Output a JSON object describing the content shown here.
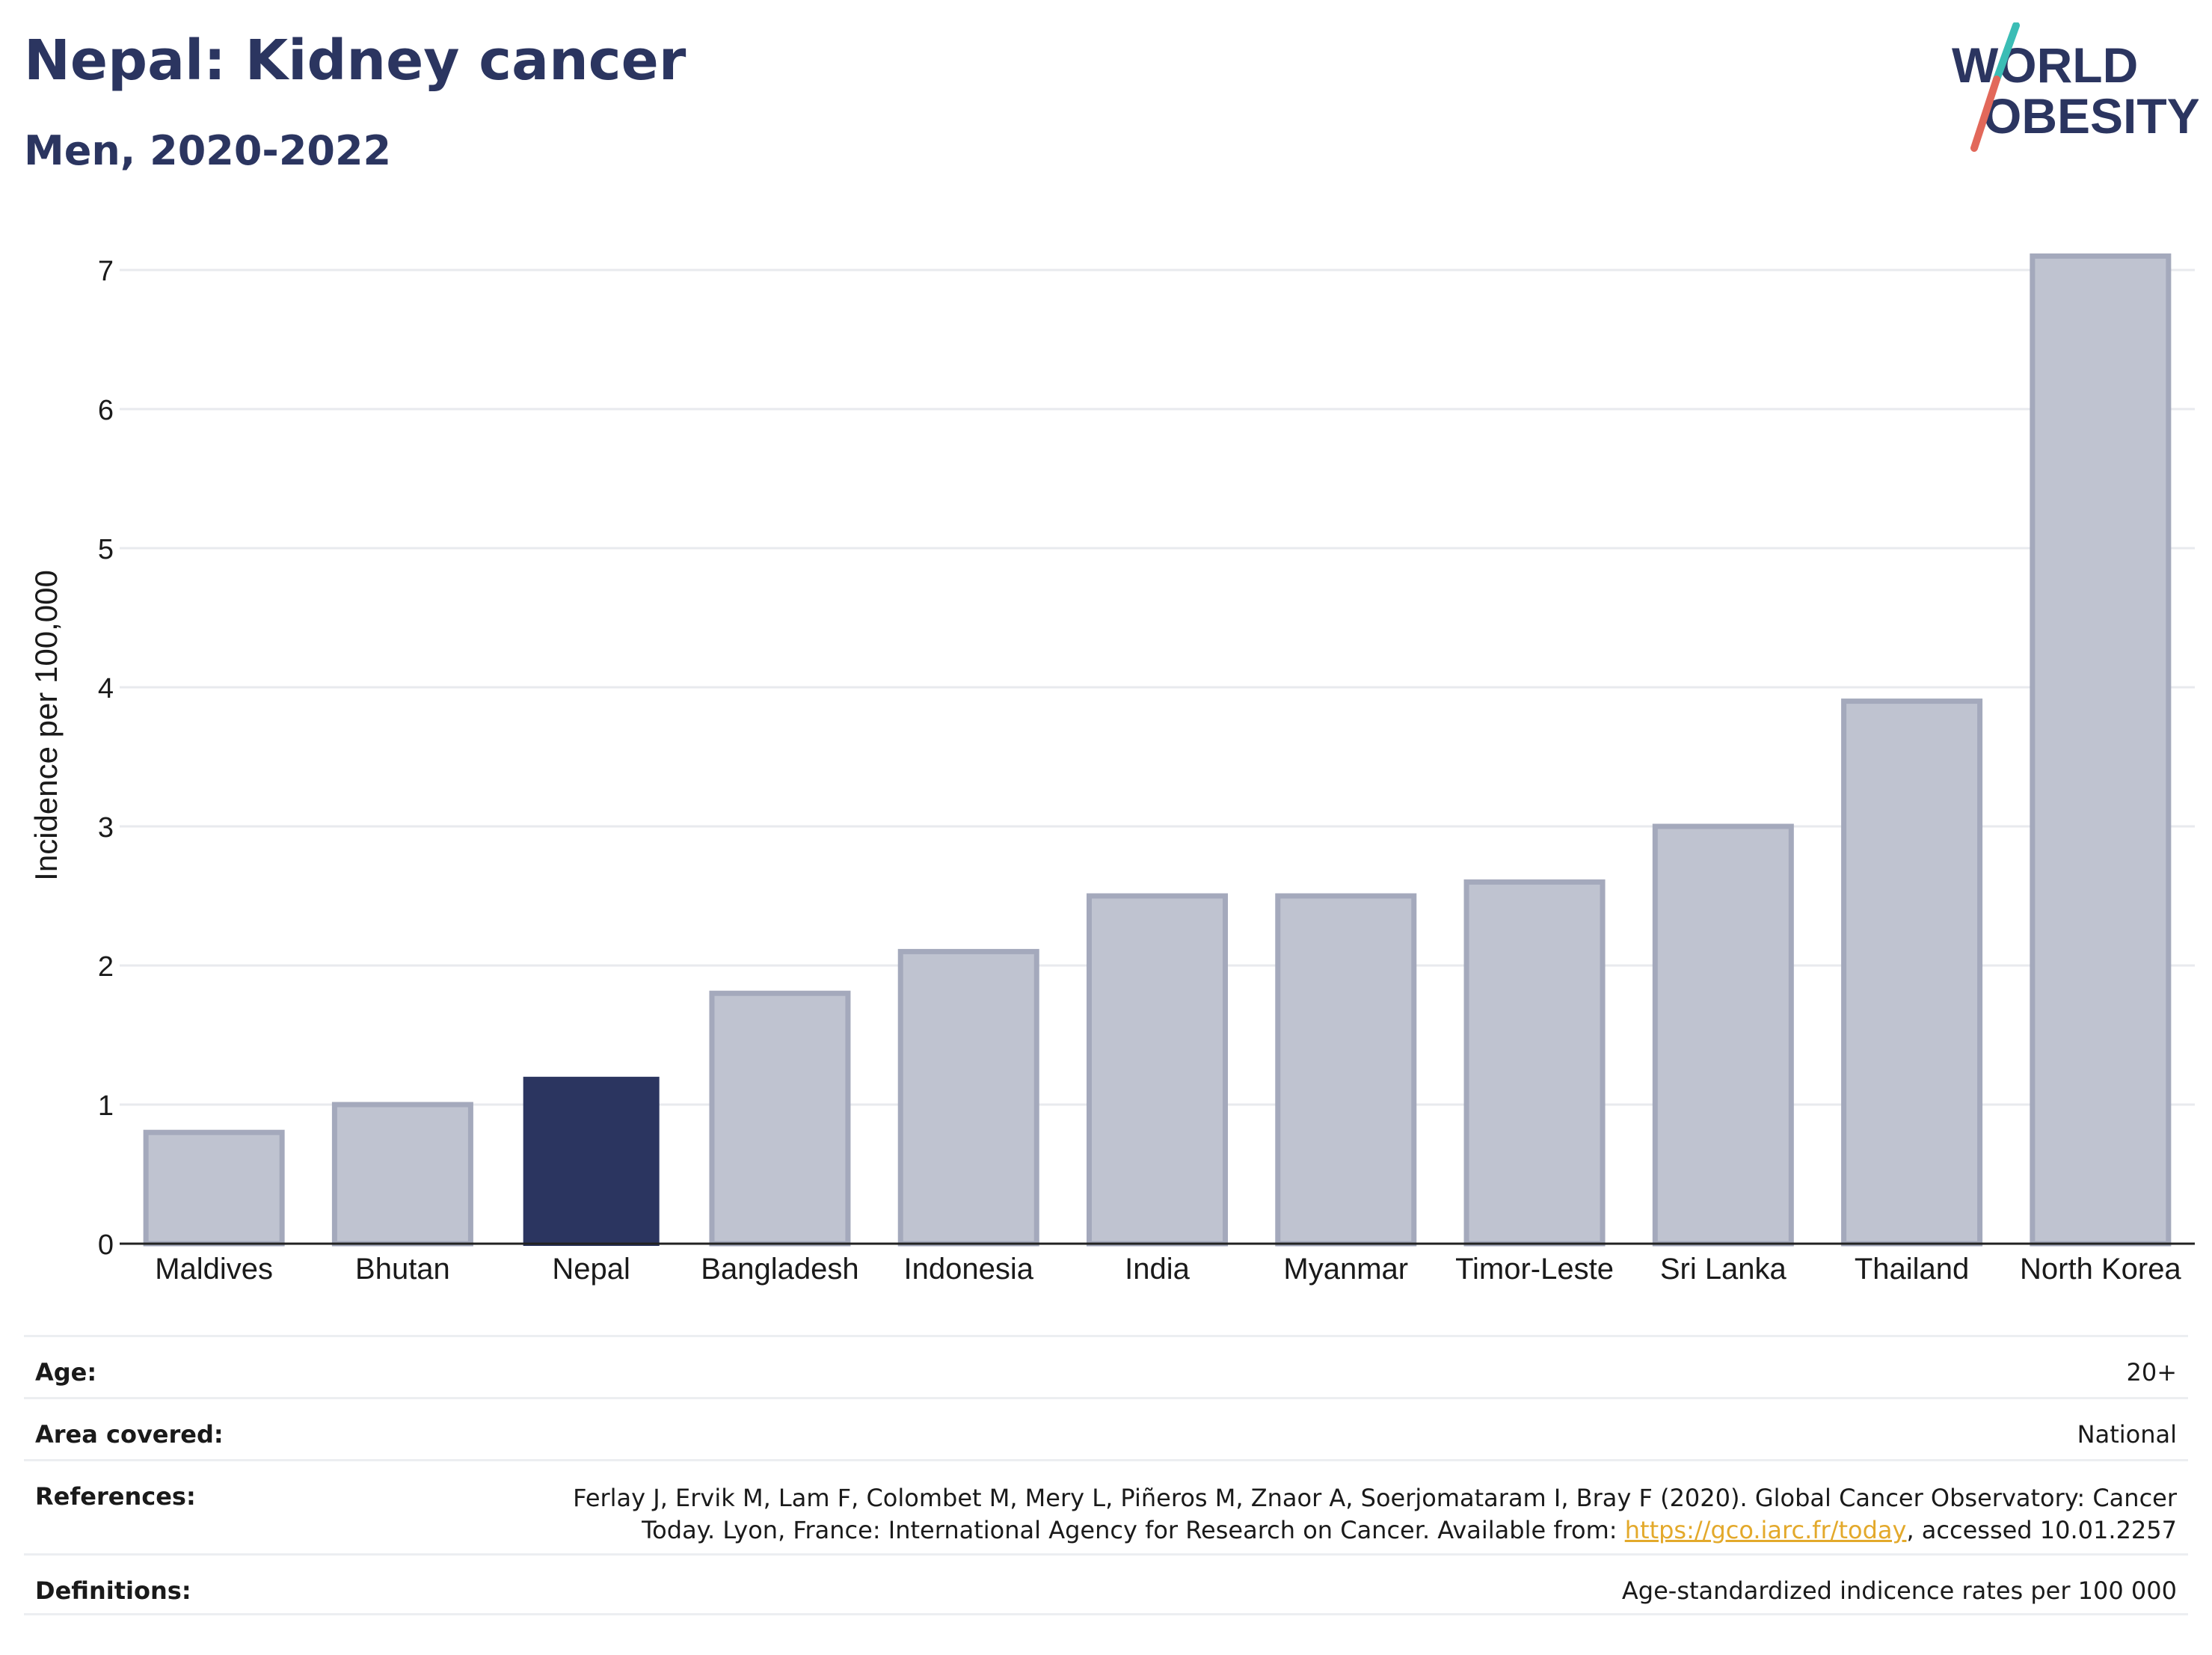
{
  "header": {
    "title": "Nepal: Kidney cancer",
    "subtitle": "Men, 2020-2022"
  },
  "logo": {
    "line1": "WORLD",
    "line2": "OBESITY"
  },
  "colors": {
    "highlight_bar": "#2b3560",
    "other_bar_fill": "#bfc3d0",
    "other_bar_stroke": "#a4a9bc",
    "title": "#2b3560",
    "grid": "#e8eaee",
    "link": "#e3a92b",
    "logo_teal": "#3bbdb5",
    "logo_coral": "#e2685a"
  },
  "chart_data": {
    "type": "bar",
    "title": "Nepal: Kidney cancer",
    "subtitle": "Men, 2020-2022",
    "ylabel": "Incidence per 100,000",
    "xlabel": "",
    "ylim": [
      0,
      7.3
    ],
    "yticks": [
      0,
      1,
      2,
      3,
      4,
      5,
      6,
      7
    ],
    "grid": true,
    "highlight": "Nepal",
    "categories": [
      "Maldives",
      "Bhutan",
      "Nepal",
      "Bangladesh",
      "Indonesia",
      "India",
      "Myanmar",
      "Timor-Leste",
      "Sri Lanka",
      "Thailand",
      "North Korea"
    ],
    "values": [
      0.8,
      1.0,
      1.2,
      1.8,
      2.1,
      2.5,
      2.5,
      2.6,
      3.0,
      3.9,
      7.1
    ]
  },
  "info": {
    "age_label": "Age:",
    "age_value": "20+",
    "area_label": "Area covered:",
    "area_value": "National",
    "references_label": "References:",
    "references_line1": "Ferlay J, Ervik M, Lam F, Colombet M, Mery L, Piñeros M, Znaor A, Soerjomataram I, Bray F (2020). Global Cancer Observatory: Cancer",
    "references_line2_pre": "Today. Lyon, France: International Agency for Research on Cancer. Available from: ",
    "references_link": "https://gco.iarc.fr/today",
    "references_line2_post": ", accessed 10.01.2257",
    "definitions_label": "Definitions:",
    "definitions_value": "Age-standardized indicence rates per 100 000"
  }
}
